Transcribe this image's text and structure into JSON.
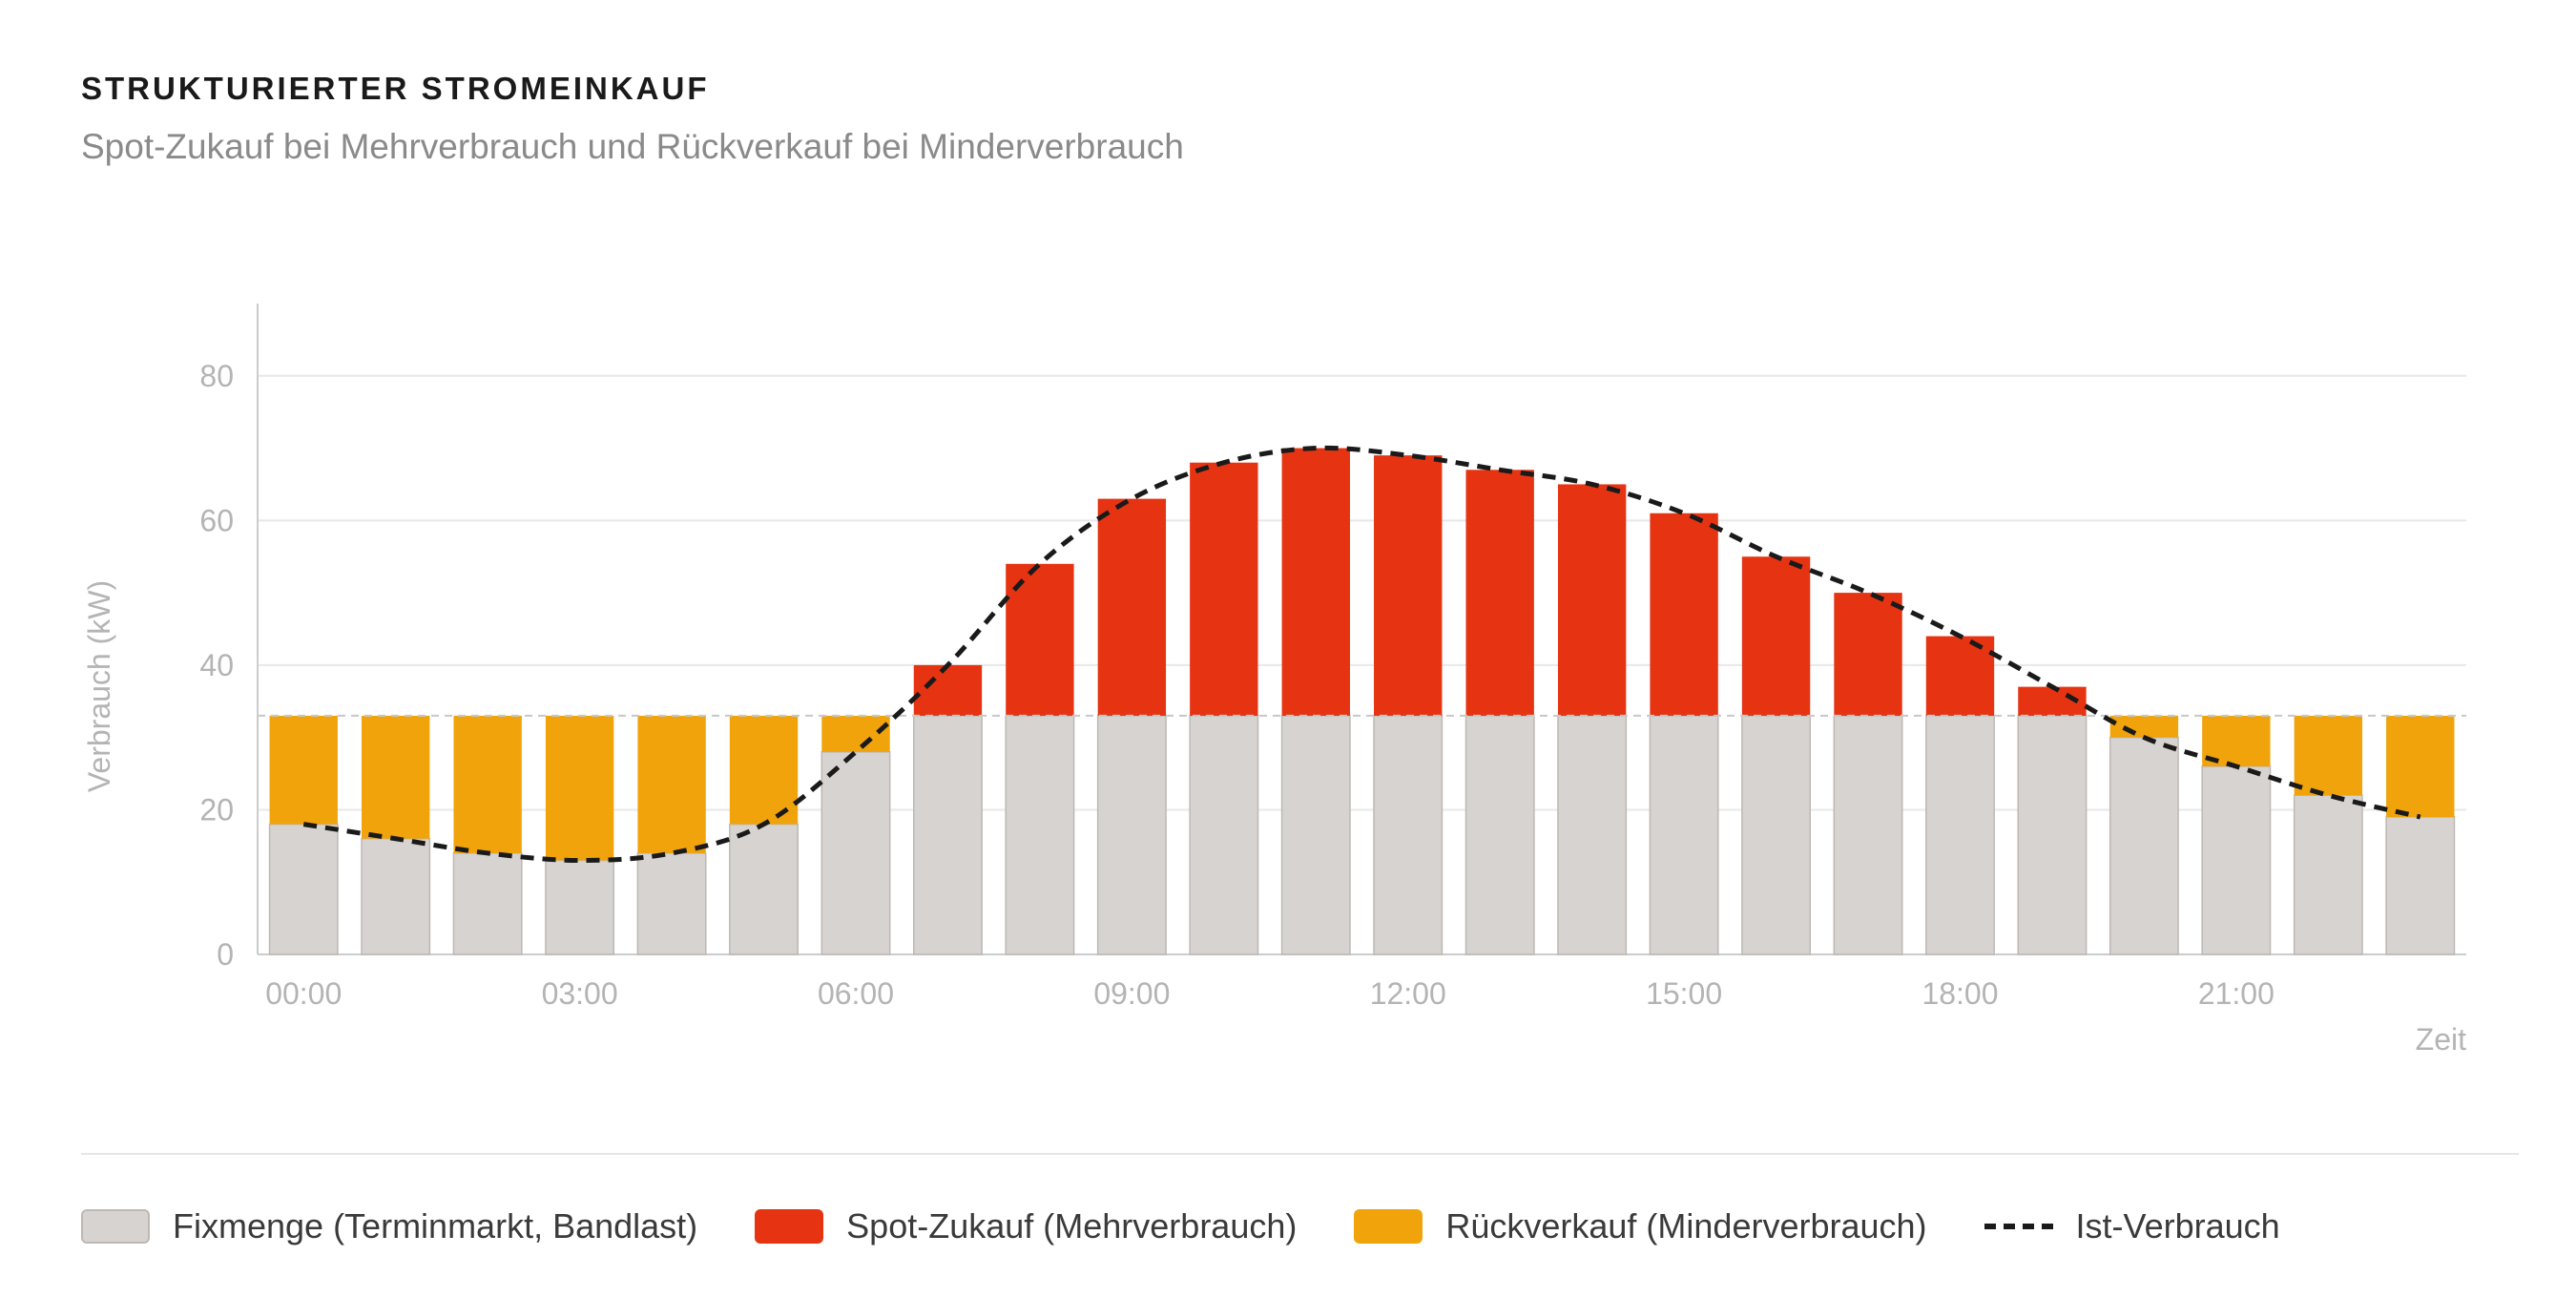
{
  "header": {
    "title": "STRUKTURIERTER STROMEINKAUF",
    "subtitle": "Spot-Zukauf bei Mehrverbrauch und Rückverkauf bei Minderverbrauch"
  },
  "colors": {
    "fix": "#d7d3d0",
    "fix_stroke": "#bdb8b4",
    "spot": "#e63312",
    "rueck": "#f0a30a",
    "line": "#1a1a1a",
    "grid": "#e8e8e8",
    "axis": "#cccccc",
    "tick_text": "#b4b4b4"
  },
  "chart_data": {
    "type": "bar",
    "title": "STRUKTURIERTER STROMEINKAUF",
    "subtitle": "Spot-Zukauf bei Mehrverbrauch und Rückverkauf bei Minderverbrauch",
    "xlabel": "Zeit",
    "ylabel": "Verbrauch (kW)",
    "ylim": [
      0,
      90
    ],
    "yticks": [
      0,
      20,
      40,
      60,
      80
    ],
    "xtick_labels": [
      "00:00",
      "03:00",
      "06:00",
      "09:00",
      "12:00",
      "15:00",
      "18:00",
      "21:00"
    ],
    "xtick_hours": [
      0,
      3,
      6,
      9,
      12,
      15,
      18,
      21
    ],
    "hours": [
      0,
      1,
      2,
      3,
      4,
      5,
      6,
      7,
      8,
      9,
      10,
      11,
      12,
      13,
      14,
      15,
      16,
      17,
      18,
      19,
      20,
      21,
      22,
      23
    ],
    "baseload": 33,
    "actual": [
      18,
      16,
      14,
      13,
      14,
      18,
      28,
      40,
      54,
      63,
      68,
      70,
      69,
      67,
      65,
      61,
      55,
      50,
      44,
      37,
      30,
      26,
      22,
      19
    ],
    "series": [
      {
        "name": "Fixmenge (Terminmarkt, Bandlast)",
        "key": "fix",
        "values": [
          18,
          16,
          14,
          13,
          14,
          18,
          28,
          33,
          33,
          33,
          33,
          33,
          33,
          33,
          33,
          33,
          33,
          33,
          33,
          33,
          30,
          26,
          22,
          19
        ]
      },
      {
        "name": "Spot-Zukauf (Mehrverbrauch)",
        "key": "spot",
        "values": [
          0,
          0,
          0,
          0,
          0,
          0,
          0,
          7,
          21,
          30,
          35,
          37,
          36,
          34,
          32,
          28,
          22,
          17,
          11,
          4,
          0,
          0,
          0,
          0
        ]
      },
      {
        "name": "Rückverkauf (Minderverbrauch)",
        "key": "rueck",
        "values": [
          15,
          17,
          19,
          20,
          19,
          15,
          5,
          0,
          0,
          0,
          0,
          0,
          0,
          0,
          0,
          0,
          0,
          0,
          0,
          0,
          3,
          7,
          11,
          14
        ]
      },
      {
        "name": "Ist-Verbrauch",
        "key": "line",
        "values": [
          18,
          16,
          14,
          13,
          14,
          18,
          28,
          40,
          54,
          63,
          68,
          70,
          69,
          67,
          65,
          61,
          55,
          50,
          44,
          37,
          30,
          26,
          22,
          19
        ]
      }
    ],
    "grid": true,
    "legend_position": "bottom"
  },
  "legend": {
    "items": [
      {
        "key": "fix",
        "label": "Fixmenge (Terminmarkt, Bandlast)"
      },
      {
        "key": "spot",
        "label": "Spot-Zukauf (Mehrverbrauch)"
      },
      {
        "key": "rueck",
        "label": "Rückverkauf (Minderverbrauch)"
      },
      {
        "key": "line",
        "label": "Ist-Verbrauch"
      }
    ]
  }
}
